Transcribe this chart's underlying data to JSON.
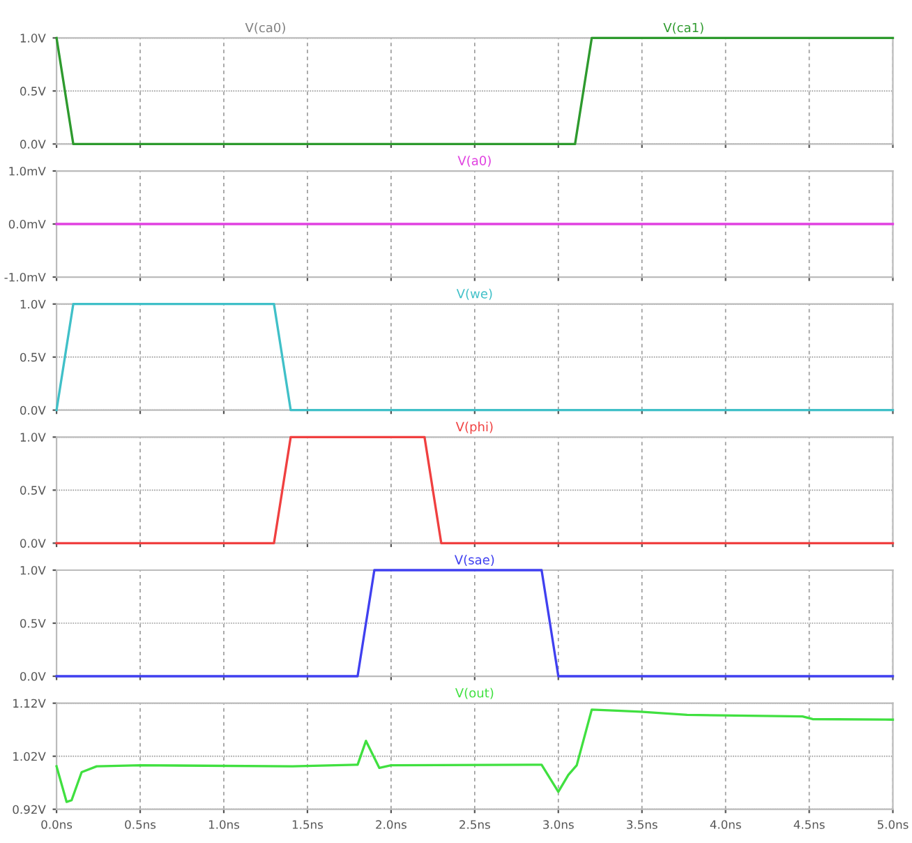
{
  "chart_data": [
    {
      "type": "line",
      "xlim": [
        0,
        5
      ],
      "xticks": [
        {
          "value": 0,
          "label": null
        },
        {
          "value": 0.5,
          "label": null
        },
        {
          "value": 1,
          "label": null
        },
        {
          "value": 1.5,
          "label": null
        },
        {
          "value": 2,
          "label": null
        },
        {
          "value": 2.5,
          "label": null
        },
        {
          "value": 3,
          "label": null
        },
        {
          "value": 3.5,
          "label": null
        },
        {
          "value": 4,
          "label": null
        },
        {
          "value": 4.5,
          "label": null
        },
        {
          "value": 5,
          "label": null
        }
      ],
      "ylim": [
        0,
        1
      ],
      "yticks": [
        {
          "value": 0,
          "label": "0.0V"
        },
        {
          "value": 0.5,
          "label": "0.5V"
        },
        {
          "value": 1,
          "label": "1.0V"
        }
      ],
      "grid": true,
      "tick_labels": "y",
      "series": [
        {
          "name": "V(ca0)",
          "color": "#808080"
        },
        {
          "name": "V(ca1)",
          "color": "#2e9a2e",
          "x": [
            0,
            0.1,
            3.1,
            3.2,
            5
          ],
          "values": [
            1,
            0,
            0,
            1,
            1
          ]
        }
      ]
    },
    {
      "type": "line",
      "xlim": [
        0,
        5
      ],
      "xticks": [
        {
          "value": 0,
          "label": null
        },
        {
          "value": 0.5,
          "label": null
        },
        {
          "value": 1,
          "label": null
        },
        {
          "value": 1.5,
          "label": null
        },
        {
          "value": 2,
          "label": null
        },
        {
          "value": 2.5,
          "label": null
        },
        {
          "value": 3,
          "label": null
        },
        {
          "value": 3.5,
          "label": null
        },
        {
          "value": 4,
          "label": null
        },
        {
          "value": 4.5,
          "label": null
        },
        {
          "value": 5,
          "label": null
        }
      ],
      "ylim": [
        -1,
        1
      ],
      "yticks": [
        {
          "value": -1,
          "label": "-1.0mV"
        },
        {
          "value": 0,
          "label": "0.0mV"
        },
        {
          "value": 1,
          "label": "1.0mV"
        }
      ],
      "grid": true,
      "tick_labels": "y",
      "series": [
        {
          "name": "V(a0)",
          "color": "#e040e0",
          "x": [
            0,
            5
          ],
          "values": [
            0,
            0
          ]
        }
      ]
    },
    {
      "type": "line",
      "xlim": [
        0,
        5
      ],
      "xticks": [
        {
          "value": 0,
          "label": null
        },
        {
          "value": 0.5,
          "label": null
        },
        {
          "value": 1,
          "label": null
        },
        {
          "value": 1.5,
          "label": null
        },
        {
          "value": 2,
          "label": null
        },
        {
          "value": 2.5,
          "label": null
        },
        {
          "value": 3,
          "label": null
        },
        {
          "value": 3.5,
          "label": null
        },
        {
          "value": 4,
          "label": null
        },
        {
          "value": 4.5,
          "label": null
        },
        {
          "value": 5,
          "label": null
        }
      ],
      "ylim": [
        0,
        1
      ],
      "yticks": [
        {
          "value": 0,
          "label": "0.0V"
        },
        {
          "value": 0.5,
          "label": "0.5V"
        },
        {
          "value": 1,
          "label": "1.0V"
        }
      ],
      "grid": true,
      "tick_labels": "y",
      "series": [
        {
          "name": "V(we)",
          "color": "#40c0c8",
          "x": [
            0,
            0.1,
            1.3,
            1.4,
            5
          ],
          "values": [
            0,
            1,
            1,
            0,
            0
          ]
        }
      ]
    },
    {
      "type": "line",
      "xlim": [
        0,
        5
      ],
      "xticks": [
        {
          "value": 0,
          "label": null
        },
        {
          "value": 0.5,
          "label": null
        },
        {
          "value": 1,
          "label": null
        },
        {
          "value": 1.5,
          "label": null
        },
        {
          "value": 2,
          "label": null
        },
        {
          "value": 2.5,
          "label": null
        },
        {
          "value": 3,
          "label": null
        },
        {
          "value": 3.5,
          "label": null
        },
        {
          "value": 4,
          "label": null
        },
        {
          "value": 4.5,
          "label": null
        },
        {
          "value": 5,
          "label": null
        }
      ],
      "ylim": [
        0,
        1
      ],
      "yticks": [
        {
          "value": 0,
          "label": "0.0V"
        },
        {
          "value": 0.5,
          "label": "0.5V"
        },
        {
          "value": 1,
          "label": "1.0V"
        }
      ],
      "grid": true,
      "tick_labels": "y",
      "series": [
        {
          "name": "V(phi)",
          "color": "#f04040",
          "x": [
            0,
            1.3,
            1.4,
            2.2,
            2.3,
            5
          ],
          "values": [
            0,
            0,
            1,
            1,
            0,
            0
          ]
        }
      ]
    },
    {
      "type": "line",
      "xlim": [
        0,
        5
      ],
      "xticks": [
        {
          "value": 0,
          "label": null
        },
        {
          "value": 0.5,
          "label": null
        },
        {
          "value": 1,
          "label": null
        },
        {
          "value": 1.5,
          "label": null
        },
        {
          "value": 2,
          "label": null
        },
        {
          "value": 2.5,
          "label": null
        },
        {
          "value": 3,
          "label": null
        },
        {
          "value": 3.5,
          "label": null
        },
        {
          "value": 4,
          "label": null
        },
        {
          "value": 4.5,
          "label": null
        },
        {
          "value": 5,
          "label": null
        }
      ],
      "ylim": [
        0,
        1
      ],
      "yticks": [
        {
          "value": 0,
          "label": "0.0V"
        },
        {
          "value": 0.5,
          "label": "0.5V"
        },
        {
          "value": 1,
          "label": "1.0V"
        }
      ],
      "grid": true,
      "tick_labels": "y",
      "series": [
        {
          "name": "V(sae)",
          "color": "#4040f0",
          "x": [
            0,
            1.8,
            1.9,
            2.9,
            3.0,
            5
          ],
          "values": [
            0,
            0,
            1,
            1,
            0,
            0
          ]
        }
      ]
    },
    {
      "type": "line",
      "xlim": [
        0,
        5
      ],
      "xticks": [
        {
          "value": 0,
          "label": "0.0ns"
        },
        {
          "value": 0.5,
          "label": "0.5ns"
        },
        {
          "value": 1,
          "label": "1.0ns"
        },
        {
          "value": 1.5,
          "label": "1.5ns"
        },
        {
          "value": 2,
          "label": "2.0ns"
        },
        {
          "value": 2.5,
          "label": "2.5ns"
        },
        {
          "value": 3,
          "label": "3.0ns"
        },
        {
          "value": 3.5,
          "label": "3.5ns"
        },
        {
          "value": 4,
          "label": "4.0ns"
        },
        {
          "value": 4.5,
          "label": "4.5ns"
        },
        {
          "value": 5,
          "label": "5.0ns"
        }
      ],
      "ylim": [
        0.92,
        1.12
      ],
      "yticks": [
        {
          "value": 0.92,
          "label": "0.92V"
        },
        {
          "value": 1.02,
          "label": "1.02V"
        },
        {
          "value": 1.12,
          "label": "1.12V"
        }
      ],
      "grid": true,
      "series": [
        {
          "name": "V(out)",
          "color": "#40e040",
          "x": [
            0,
            0.06,
            0.09,
            0.15,
            0.24,
            0.5,
            1.41,
            1.8,
            1.85,
            1.93,
            2.0,
            2.9,
            3.0,
            3.06,
            3.11,
            3.2,
            3.35,
            3.49,
            3.77,
            3.98,
            4.46,
            4.52,
            5.0
          ],
          "values": [
            1.001,
            0.934,
            0.937,
            0.99,
            1.001,
            1.003,
            1.001,
            1.004,
            1.049,
            0.998,
            1.003,
            1.004,
            0.953,
            0.985,
            1.003,
            1.108,
            1.106,
            1.104,
            1.098,
            1.097,
            1.095,
            1.09,
            1.089
          ]
        }
      ]
    }
  ]
}
